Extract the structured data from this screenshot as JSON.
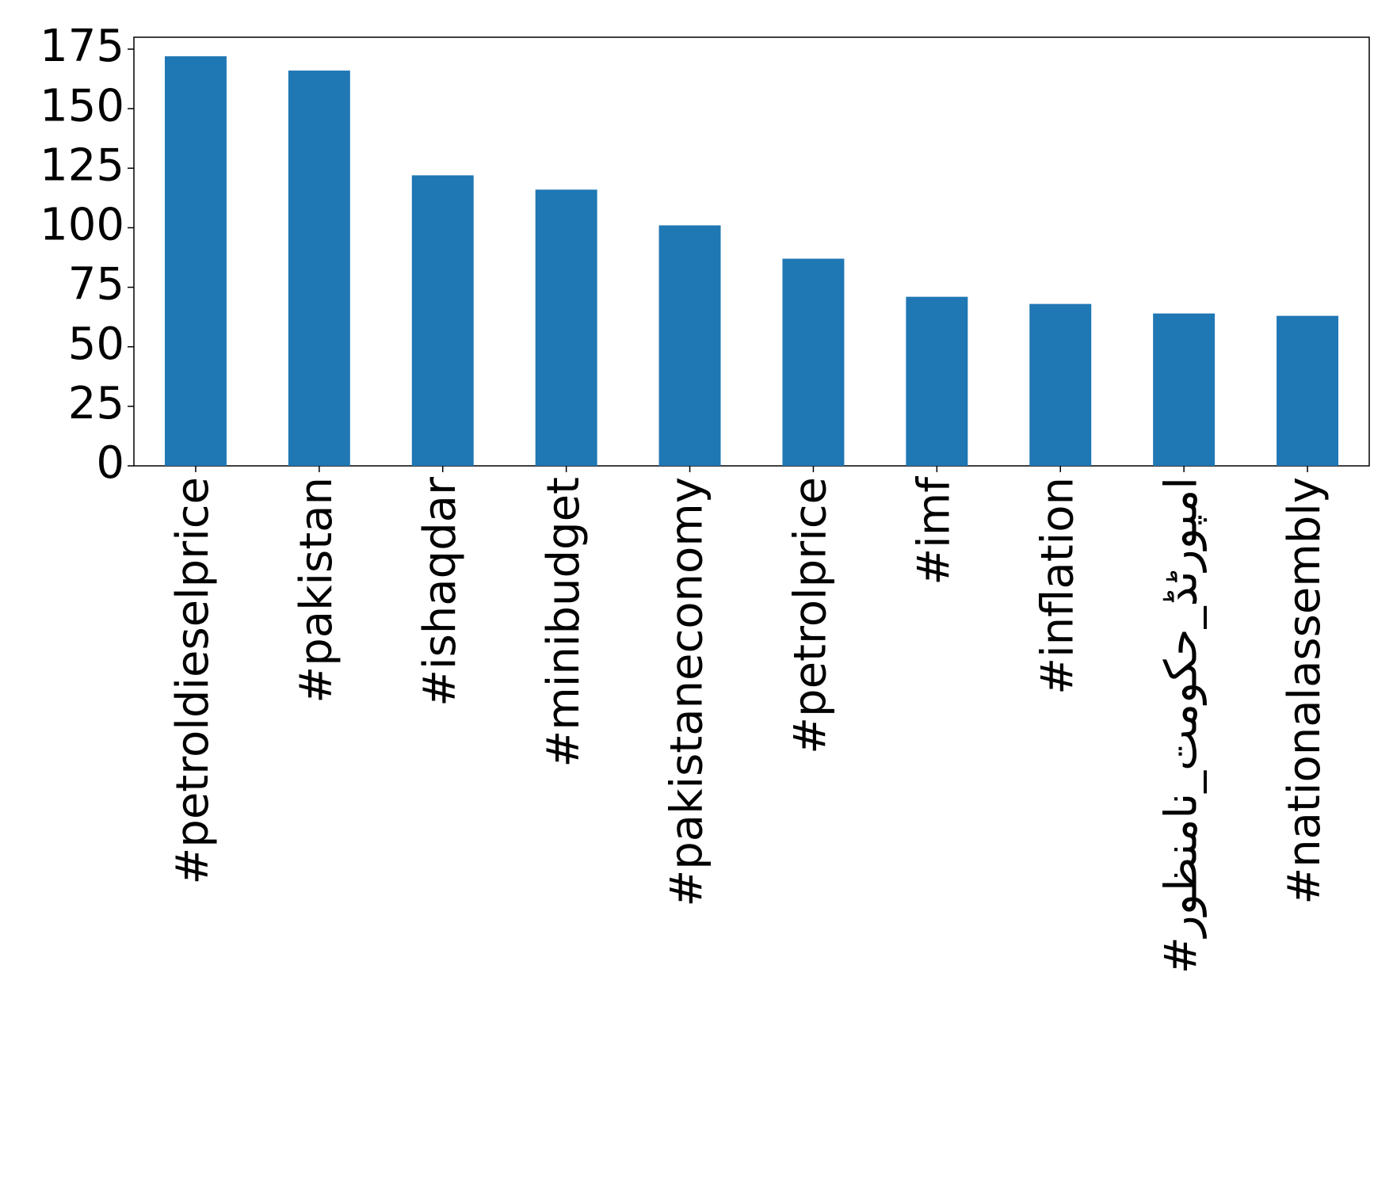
{
  "chart_data": {
    "type": "bar",
    "categories": [
      "#petroldieselprice",
      "#pakistan",
      "#ishaqdar",
      "#minibudget",
      "#pakistaneconomy",
      "#petrolprice",
      "#imf",
      "#inflation",
      "#امپورٹڈ_حکومت_نامنظور",
      "#nationalassembly"
    ],
    "values": [
      172,
      166,
      122,
      116,
      101,
      87,
      71,
      68,
      64,
      63
    ],
    "color": "#1f77b4",
    "ylim": [
      0,
      180
    ],
    "yticks": [
      0,
      25,
      50,
      75,
      100,
      125,
      150,
      175
    ],
    "grid": false
  }
}
